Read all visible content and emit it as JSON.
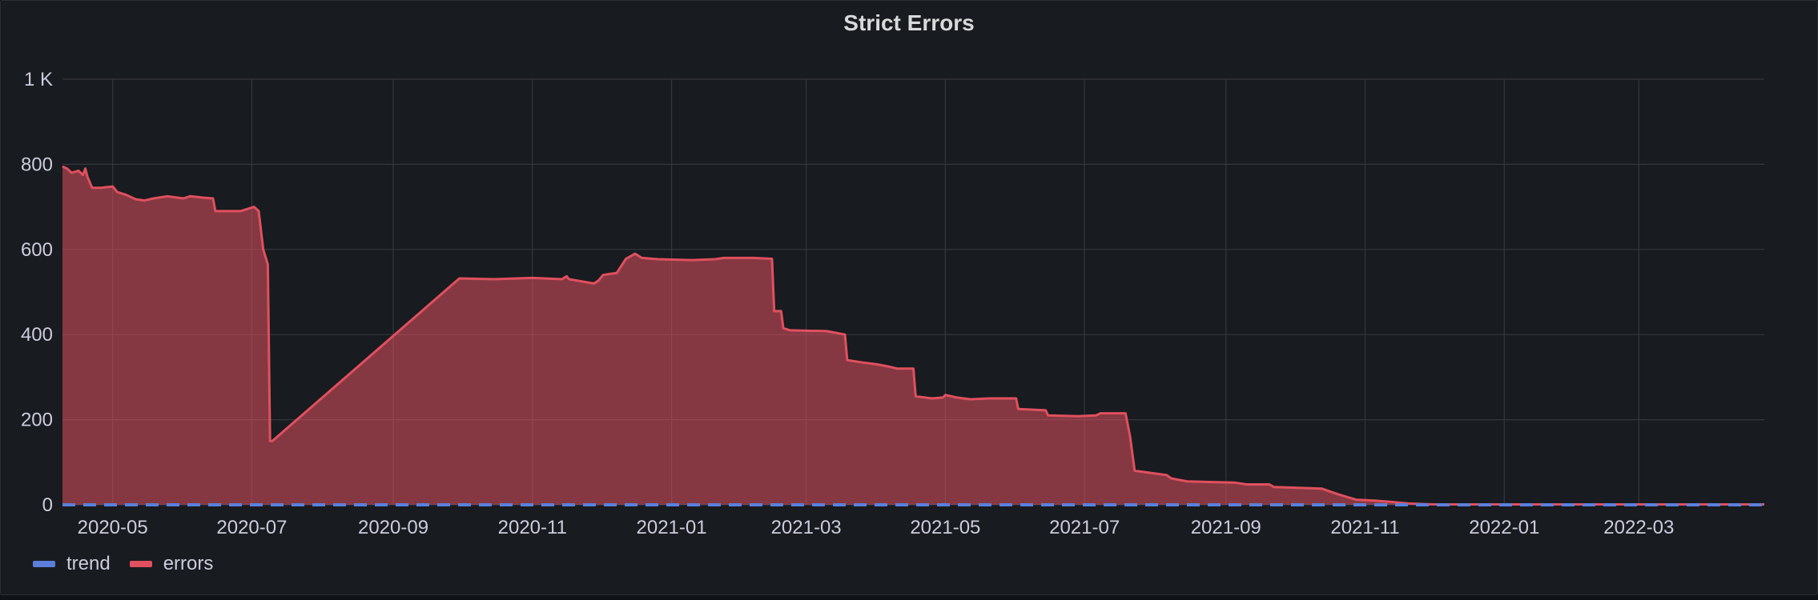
{
  "panel": {
    "title": "Strict Errors"
  },
  "legend": [
    {
      "label": "trend",
      "color": "#5b7fdb"
    },
    {
      "label": "errors",
      "color": "#e0505e"
    }
  ],
  "chart_data": {
    "type": "area",
    "title": "Strict Errors",
    "xlabel": "",
    "ylabel": "",
    "xlim": [
      "2020-04-09",
      "2022-04-25"
    ],
    "ylim": [
      0,
      1000
    ],
    "y_ticks": [
      0,
      200,
      400,
      600,
      800,
      1000
    ],
    "y_tick_labels": [
      "0",
      "200",
      "400",
      "600",
      "800",
      "1 K"
    ],
    "x_ticks": [
      "2020-05-01",
      "2020-07-01",
      "2020-09-01",
      "2020-11-01",
      "2021-01-01",
      "2021-03-01",
      "2021-05-01",
      "2021-07-01",
      "2021-09-01",
      "2021-11-01",
      "2022-01-01",
      "2022-03-01"
    ],
    "x_tick_labels": [
      "2020-05",
      "2020-07",
      "2020-09",
      "2020-11",
      "2021-01",
      "2021-03",
      "2021-05",
      "2021-07",
      "2021-09",
      "2021-11",
      "2022-01",
      "2022-03"
    ],
    "grid": true,
    "legend_position": "bottom-left",
    "series": [
      {
        "name": "trend",
        "color": "#5b7fdb",
        "style": "dashed",
        "points": [
          [
            "2020-04-09",
            0
          ],
          [
            "2022-04-25",
            0
          ]
        ]
      },
      {
        "name": "errors",
        "color": "#e0505e",
        "fill": true,
        "points": [
          [
            "2020-04-09",
            795
          ],
          [
            "2020-04-11",
            790
          ],
          [
            "2020-04-13",
            780
          ],
          [
            "2020-04-16",
            785
          ],
          [
            "2020-04-18",
            775
          ],
          [
            "2020-04-19",
            790
          ],
          [
            "2020-04-20",
            770
          ],
          [
            "2020-04-22",
            745
          ],
          [
            "2020-04-26",
            745
          ],
          [
            "2020-05-01",
            748
          ],
          [
            "2020-05-03",
            735
          ],
          [
            "2020-05-07",
            728
          ],
          [
            "2020-05-11",
            718
          ],
          [
            "2020-05-15",
            715
          ],
          [
            "2020-05-19",
            720
          ],
          [
            "2020-05-25",
            725
          ],
          [
            "2020-06-01",
            720
          ],
          [
            "2020-06-04",
            725
          ],
          [
            "2020-06-09",
            722
          ],
          [
            "2020-06-14",
            720
          ],
          [
            "2020-06-15",
            690
          ],
          [
            "2020-06-26",
            690
          ],
          [
            "2020-07-02",
            700
          ],
          [
            "2020-07-04",
            690
          ],
          [
            "2020-07-06",
            600
          ],
          [
            "2020-07-08",
            565
          ],
          [
            "2020-07-09",
            150
          ],
          [
            "2020-07-10",
            150
          ],
          [
            "2020-09-30",
            532
          ],
          [
            "2020-10-15",
            530
          ],
          [
            "2020-11-01",
            533
          ],
          [
            "2020-11-14",
            530
          ],
          [
            "2020-11-16",
            537
          ],
          [
            "2020-11-17",
            530
          ],
          [
            "2020-11-28",
            520
          ],
          [
            "2020-11-30",
            527
          ],
          [
            "2020-12-02",
            540
          ],
          [
            "2020-12-08",
            545
          ],
          [
            "2020-12-12",
            578
          ],
          [
            "2020-12-16",
            590
          ],
          [
            "2020-12-19",
            580
          ],
          [
            "2020-12-26",
            577
          ],
          [
            "2021-01-10",
            575
          ],
          [
            "2021-01-20",
            577
          ],
          [
            "2021-01-24",
            580
          ],
          [
            "2021-02-06",
            580
          ],
          [
            "2021-02-14",
            578
          ],
          [
            "2021-02-15",
            455
          ],
          [
            "2021-02-18",
            455
          ],
          [
            "2021-02-19",
            415
          ],
          [
            "2021-02-22",
            410
          ],
          [
            "2021-03-10",
            408
          ],
          [
            "2021-03-18",
            400
          ],
          [
            "2021-03-19",
            340
          ],
          [
            "2021-03-25",
            335
          ],
          [
            "2021-04-01",
            330
          ],
          [
            "2021-04-06",
            325
          ],
          [
            "2021-04-10",
            320
          ],
          [
            "2021-04-17",
            320
          ],
          [
            "2021-04-18",
            255
          ],
          [
            "2021-04-25",
            250
          ],
          [
            "2021-04-30",
            252
          ],
          [
            "2021-05-01",
            258
          ],
          [
            "2021-05-06",
            252
          ],
          [
            "2021-05-12",
            248
          ],
          [
            "2021-05-20",
            250
          ],
          [
            "2021-06-01",
            250
          ],
          [
            "2021-06-02",
            225
          ],
          [
            "2021-06-14",
            222
          ],
          [
            "2021-06-15",
            210
          ],
          [
            "2021-06-28",
            208
          ],
          [
            "2021-07-06",
            210
          ],
          [
            "2021-07-08",
            215
          ],
          [
            "2021-07-19",
            215
          ],
          [
            "2021-07-21",
            160
          ],
          [
            "2021-07-23",
            80
          ],
          [
            "2021-07-30",
            75
          ],
          [
            "2021-08-06",
            70
          ],
          [
            "2021-08-08",
            62
          ],
          [
            "2021-08-15",
            55
          ],
          [
            "2021-09-05",
            52
          ],
          [
            "2021-09-10",
            48
          ],
          [
            "2021-09-20",
            48
          ],
          [
            "2021-09-22",
            42
          ],
          [
            "2021-10-13",
            38
          ],
          [
            "2021-10-20",
            25
          ],
          [
            "2021-10-28",
            12
          ],
          [
            "2021-11-05",
            10
          ],
          [
            "2021-11-12",
            7
          ],
          [
            "2021-11-20",
            3
          ],
          [
            "2021-12-01",
            1
          ],
          [
            "2022-04-25",
            1
          ]
        ]
      }
    ]
  }
}
